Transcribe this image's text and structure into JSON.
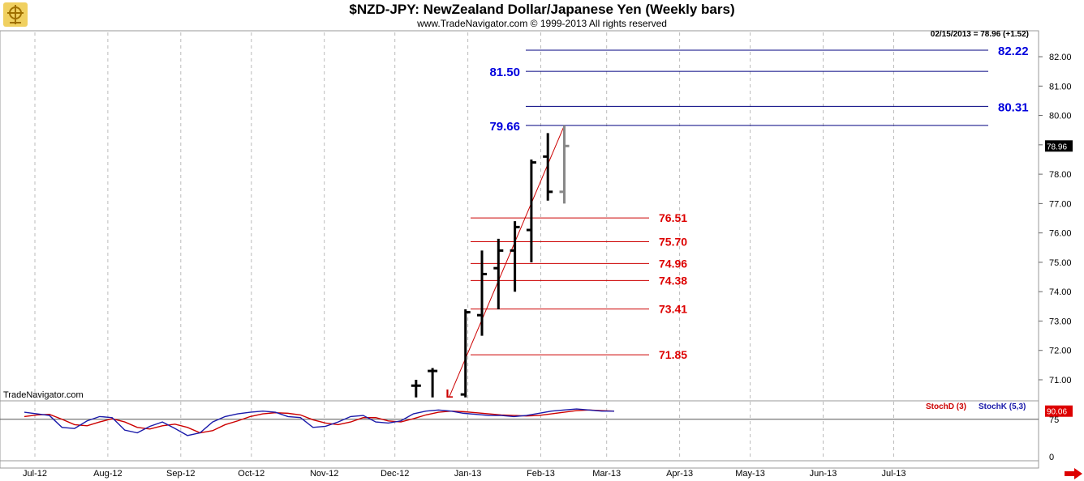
{
  "header": {
    "title": "$NZD-JPY:  NewZealand Dollar/Japanese Yen  (Weekly bars)",
    "copyright": "www.TradeNavigator.com © 1999-2013 All rights reserved",
    "last_info": "02/15/2013 = 78.96 (+1.52)",
    "watermark": "TradeNavigator.com"
  },
  "indicator": {
    "stochd_label": "StochD (3)",
    "stochk_label": "StochK (5,3)",
    "stoch_value_badge": "90.06",
    "scale_ticks": [
      "75",
      "0"
    ],
    "colors": {
      "stochd": "#cc0000",
      "stochk": "#1a1aaa"
    }
  },
  "colors": {
    "bars": "#000000",
    "current_bar": "#888888",
    "retracement": "#cc0000",
    "extension": "#000080",
    "extension_text": "#0000dd",
    "retracement_text": "#dd0000",
    "grid": "#bbbbbb",
    "last_price_badge": "#000000"
  },
  "chart_data": {
    "type": "ohlc",
    "price_ticks": [
      "71.00",
      "72.00",
      "73.00",
      "74.00",
      "75.00",
      "76.00",
      "77.00",
      "78.00",
      "79.00",
      "80.00",
      "81.00",
      "82.00"
    ],
    "last_price_label": "78.96",
    "x_labels": [
      "Jul-12",
      "Aug-12",
      "Sep-12",
      "Oct-12",
      "Nov-12",
      "Dec-12",
      "Jan-13",
      "Feb-13",
      "Mar-13",
      "Apr-13",
      "May-13",
      "Jun-13",
      "Jul-13"
    ],
    "bars": [
      {
        "x": "2012-12-10",
        "open": 70.8,
        "high": 71.0,
        "low": 70.4,
        "close": 70.8
      },
      {
        "x": "2012-12-17",
        "open": 71.3,
        "high": 71.4,
        "low": 70.4,
        "close": 71.3
      },
      {
        "x": "2012-12-31",
        "open": 70.5,
        "high": 73.4,
        "low": 70.4,
        "close": 73.3
      },
      {
        "x": "2013-01-07",
        "open": 73.2,
        "high": 75.4,
        "low": 72.5,
        "close": 74.6
      },
      {
        "x": "2013-01-14",
        "open": 74.8,
        "high": 75.8,
        "low": 73.4,
        "close": 75.4
      },
      {
        "x": "2013-01-21",
        "open": 75.4,
        "high": 76.4,
        "low": 74.0,
        "close": 76.2
      },
      {
        "x": "2013-01-28",
        "open": 76.1,
        "high": 78.5,
        "low": 75.0,
        "close": 78.4
      },
      {
        "x": "2013-02-04",
        "open": 78.6,
        "high": 79.4,
        "low": 77.1,
        "close": 77.4
      },
      {
        "x": "2013-02-11",
        "open": 77.4,
        "high": 79.66,
        "low": 77.0,
        "close": 78.96
      }
    ],
    "swing_low_marker": "L",
    "swing_line": {
      "from": {
        "x": "2012-12-24",
        "price": 70.4
      },
      "to": {
        "x": "2013-02-11",
        "price": 79.66
      }
    },
    "retracement_levels": [
      "76.51",
      "75.70",
      "74.96",
      "74.38",
      "73.41",
      "71.85"
    ],
    "extension_levels": [
      {
        "label": "81.50",
        "side": "left"
      },
      {
        "label": "79.66",
        "side": "left"
      },
      {
        "label": "82.22",
        "side": "right"
      },
      {
        "label": "80.31",
        "side": "right"
      }
    ],
    "stoch_k": [
      88,
      85,
      82,
      60,
      58,
      72,
      80,
      78,
      55,
      50,
      62,
      70,
      58,
      45,
      50,
      70,
      80,
      85,
      88,
      90,
      88,
      80,
      78,
      60,
      62,
      70,
      80,
      82,
      70,
      68,
      72,
      85,
      90,
      92,
      90,
      86,
      84,
      82,
      82,
      80,
      82,
      86,
      90,
      92,
      94,
      92,
      90,
      90
    ],
    "stoch_d": [
      80,
      83,
      84,
      75,
      65,
      63,
      70,
      76,
      70,
      60,
      57,
      63,
      66,
      60,
      50,
      54,
      65,
      72,
      80,
      85,
      87,
      86,
      83,
      74,
      68,
      65,
      70,
      78,
      78,
      72,
      70,
      76,
      83,
      88,
      90,
      89,
      87,
      85,
      83,
      82,
      81,
      82,
      85,
      88,
      91,
      92,
      91,
      90
    ],
    "grid": "vertical-dashed"
  }
}
